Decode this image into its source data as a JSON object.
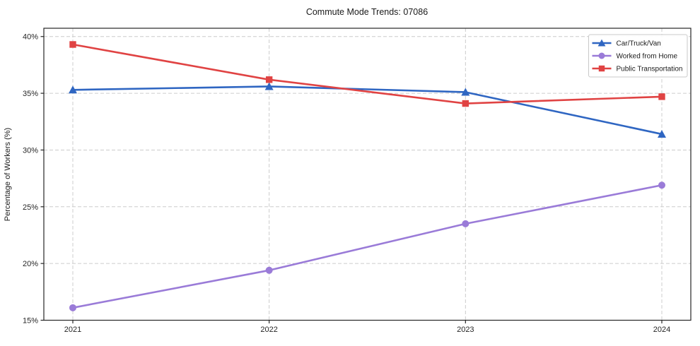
{
  "chart_data": {
    "type": "line",
    "title": "Commute Mode Trends: 07086",
    "xlabel": "",
    "ylabel": "Percentage of Workers (%)",
    "categories": [
      "2021",
      "2022",
      "2023",
      "2024"
    ],
    "series": [
      {
        "name": "Car/Truck/Van",
        "color": "#2f66c2",
        "marker": "triangle",
        "values": [
          35.3,
          35.6,
          35.1,
          31.4
        ]
      },
      {
        "name": "Worked from Home",
        "color": "#9a7bd8",
        "marker": "circle",
        "values": [
          16.1,
          19.4,
          23.5,
          26.9
        ]
      },
      {
        "name": "Public Transportation",
        "color": "#e04343",
        "marker": "square",
        "values": [
          39.3,
          36.2,
          34.1,
          34.7
        ]
      }
    ],
    "ylim": [
      15,
      40.73
    ],
    "yticks": [
      15,
      20,
      25,
      30,
      35,
      40
    ],
    "ytick_labels": [
      "15%",
      "20%",
      "25%",
      "30%",
      "35%",
      "40%"
    ],
    "grid": true,
    "grid_style": "dashed",
    "legend_position": "upper right",
    "colors": {
      "grid": "#cccccc",
      "frame": "#262626",
      "legend_border": "#c9c9c9",
      "background": "#ffffff"
    }
  }
}
